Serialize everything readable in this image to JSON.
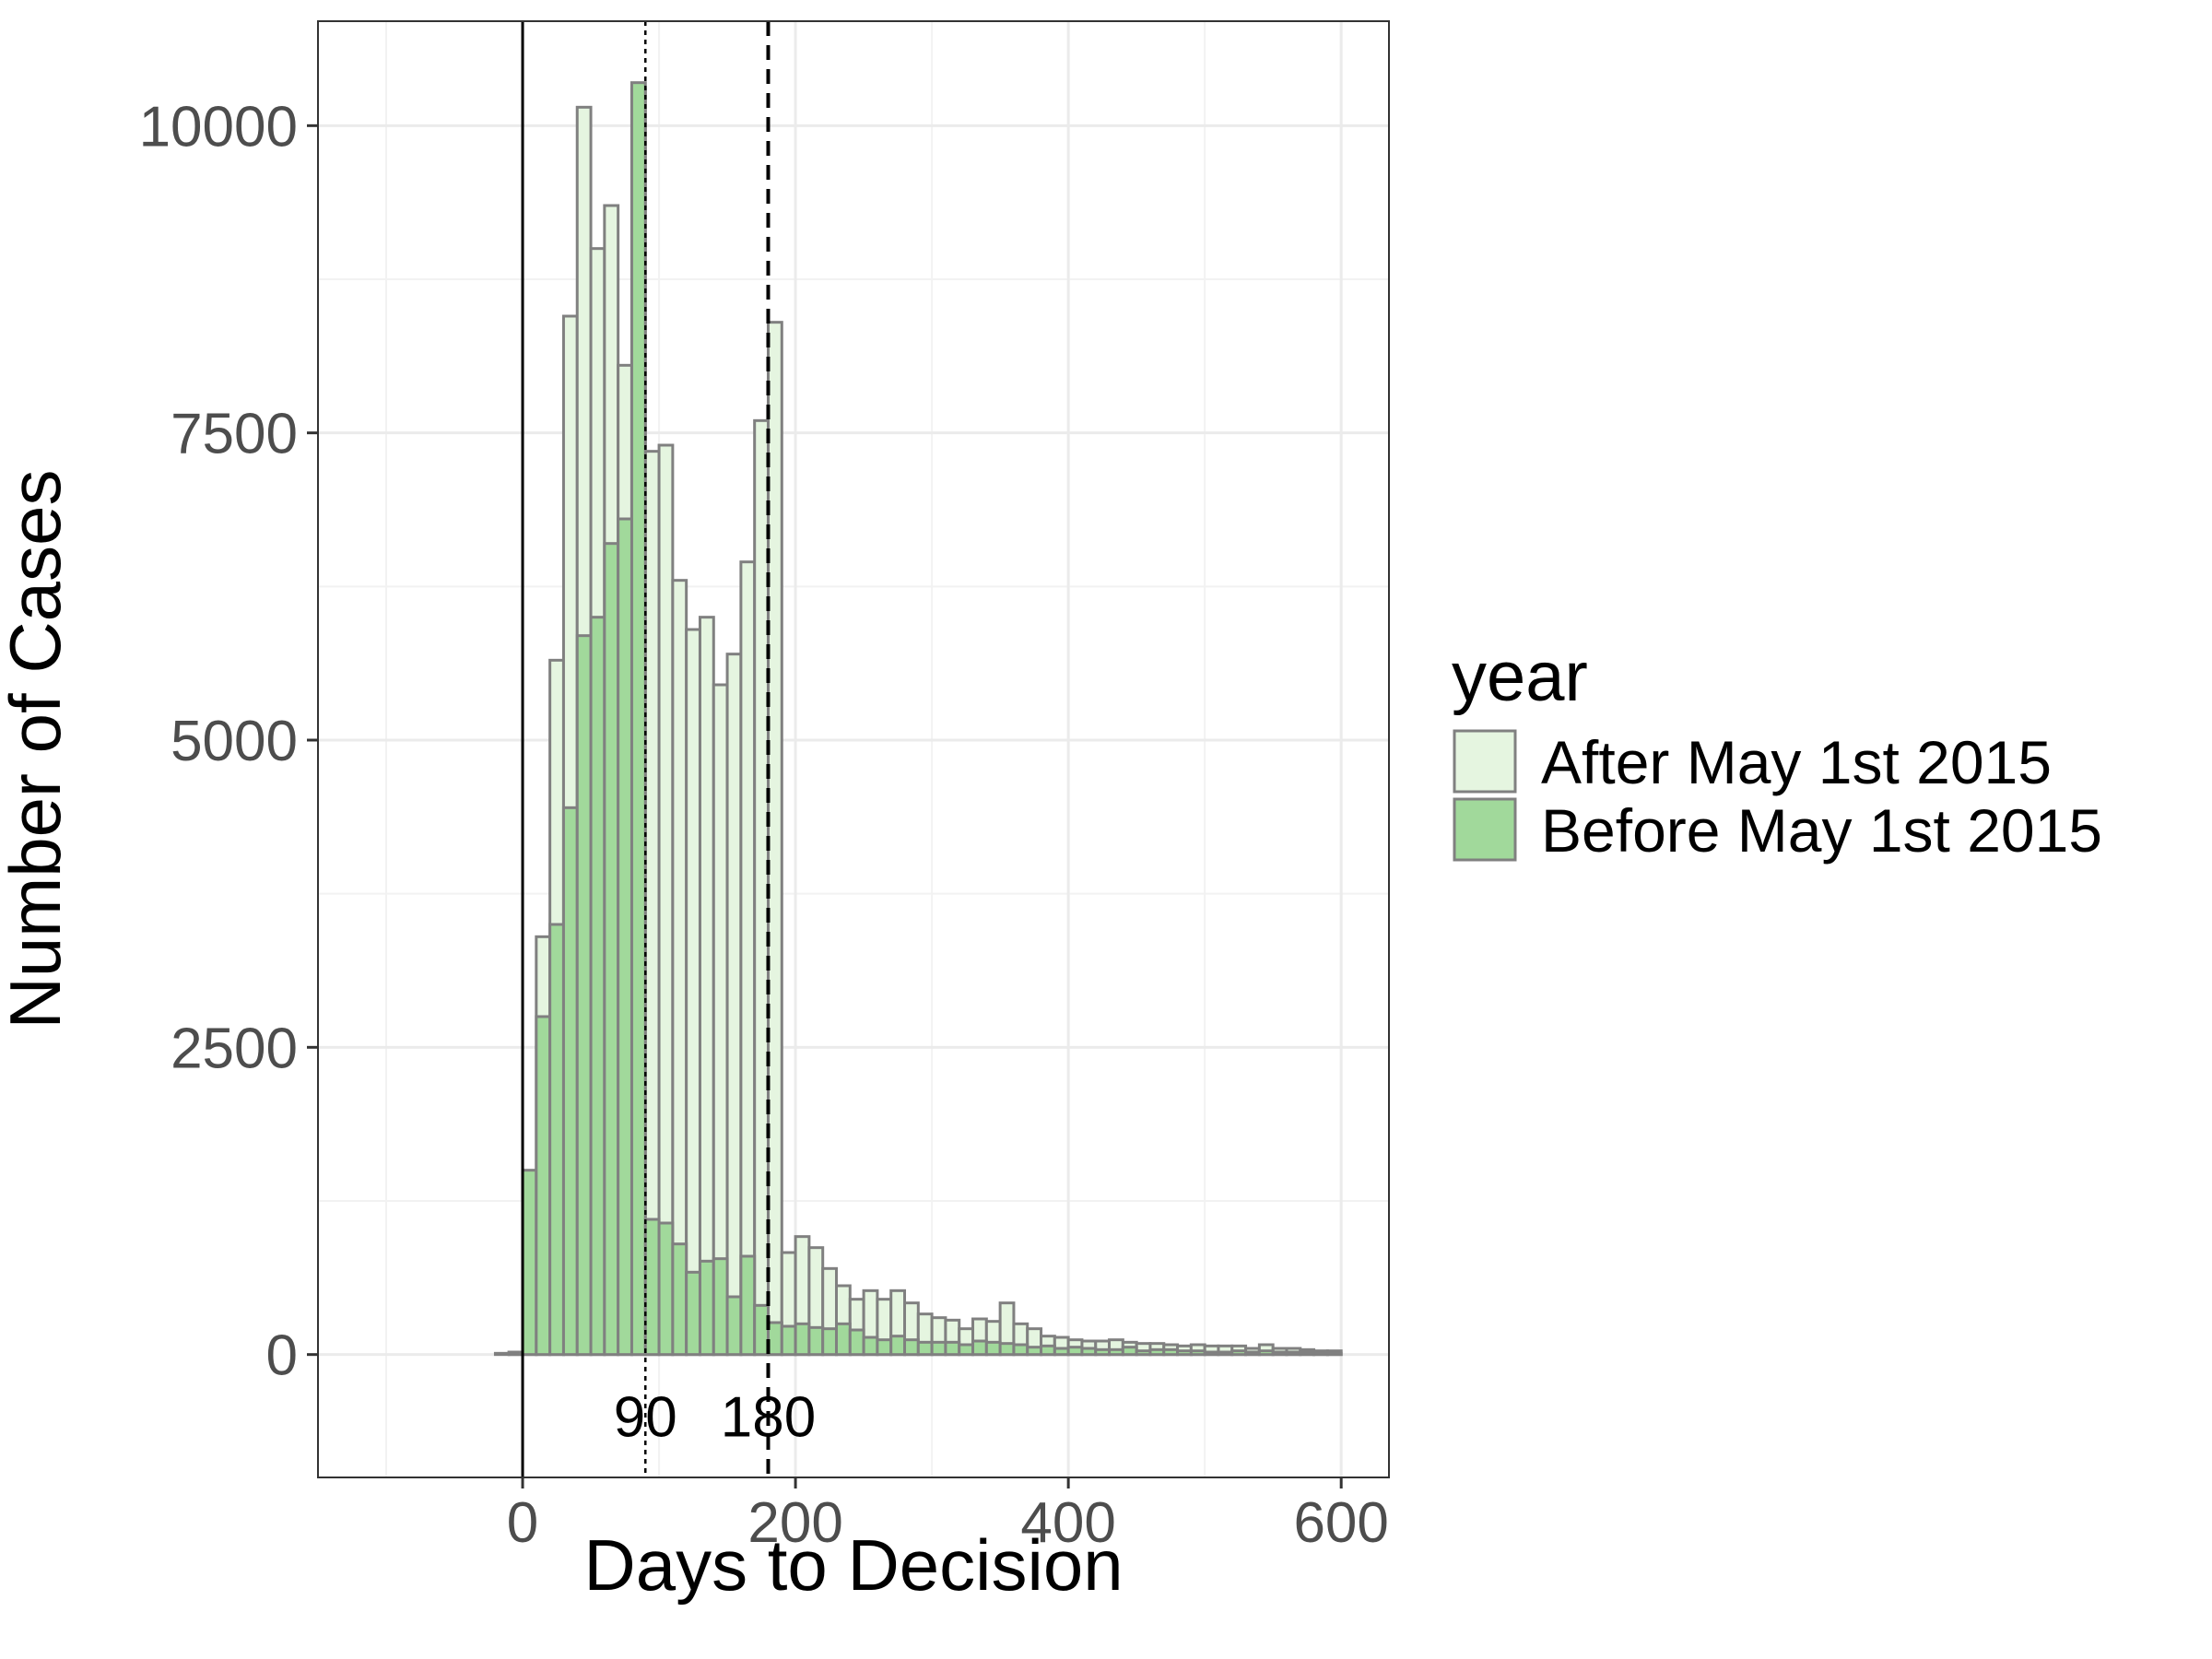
{
  "chart_data": {
    "type": "bar",
    "subtype": "overlapping-histogram",
    "title": "",
    "xlabel": "Days to Decision",
    "ylabel": "Number of Cases",
    "xlim": [
      -150,
      635
    ],
    "ylim": [
      -1000,
      10850
    ],
    "xticks": [
      0,
      200,
      400,
      600
    ],
    "yticks": [
      0,
      2500,
      5000,
      7500,
      10000
    ],
    "x_minor_grid": [
      -100,
      100,
      300,
      500
    ],
    "y_minor_grid": [
      1250,
      3750,
      6250,
      8750
    ],
    "grid": true,
    "bin_width": 10,
    "bin_starts": [
      -150,
      -140,
      -130,
      -120,
      -110,
      -100,
      -90,
      -80,
      -70,
      -60,
      -50,
      -40,
      -30,
      -20,
      -10,
      0,
      10,
      20,
      30,
      40,
      50,
      60,
      70,
      80,
      90,
      100,
      110,
      120,
      130,
      140,
      150,
      160,
      170,
      180,
      190,
      200,
      210,
      220,
      230,
      240,
      250,
      260,
      270,
      280,
      290,
      300,
      310,
      320,
      330,
      340,
      350,
      360,
      370,
      380,
      390,
      400,
      410,
      420,
      430,
      440,
      450,
      460,
      470,
      480,
      490,
      500,
      510,
      520,
      530,
      540,
      550,
      560,
      570,
      580,
      590
    ],
    "series": [
      {
        "name": "After May 1st 2015",
        "color": "#e5f5e0",
        "values": [
          0,
          0,
          0,
          0,
          0,
          0,
          0,
          0,
          0,
          0,
          0,
          0,
          0,
          0,
          20,
          1400,
          3400,
          5650,
          8450,
          10150,
          9000,
          9350,
          8050,
          10300,
          7350,
          7400,
          6300,
          5900,
          6000,
          5450,
          5700,
          6450,
          7600,
          8400,
          830,
          960,
          870,
          700,
          560,
          450,
          520,
          450,
          520,
          420,
          330,
          300,
          280,
          210,
          290,
          270,
          420,
          250,
          210,
          150,
          140,
          120,
          110,
          110,
          120,
          100,
          90,
          90,
          80,
          70,
          80,
          70,
          70,
          70,
          50,
          80,
          50,
          50,
          40,
          30,
          30
        ]
      },
      {
        "name": "Before May 1st 2015",
        "color": "#a1d99b",
        "values": [
          0,
          0,
          0,
          0,
          0,
          0,
          0,
          0,
          0,
          0,
          0,
          0,
          0,
          10,
          20,
          1500,
          2750,
          3500,
          4450,
          5850,
          6000,
          6600,
          6800,
          10350,
          1100,
          1070,
          900,
          670,
          760,
          780,
          470,
          800,
          400,
          260,
          230,
          250,
          220,
          210,
          250,
          200,
          140,
          120,
          150,
          120,
          100,
          100,
          100,
          80,
          110,
          100,
          90,
          80,
          60,
          70,
          50,
          60,
          50,
          40,
          40,
          60,
          30,
          40,
          40,
          30,
          30,
          20,
          20,
          30,
          20,
          30,
          20,
          20,
          20,
          10,
          10
        ]
      }
    ],
    "bar_outline_color": "#808080",
    "vlines": [
      {
        "x": 0,
        "style": "solid"
      },
      {
        "x": 90,
        "style": "dotted",
        "label": "90"
      },
      {
        "x": 180,
        "style": "dashed",
        "label": "180"
      }
    ],
    "annotation_y": -500,
    "legend": {
      "title": "year",
      "placement": "right",
      "entries": [
        "After May 1st 2015",
        "Before May 1st 2015"
      ]
    }
  }
}
